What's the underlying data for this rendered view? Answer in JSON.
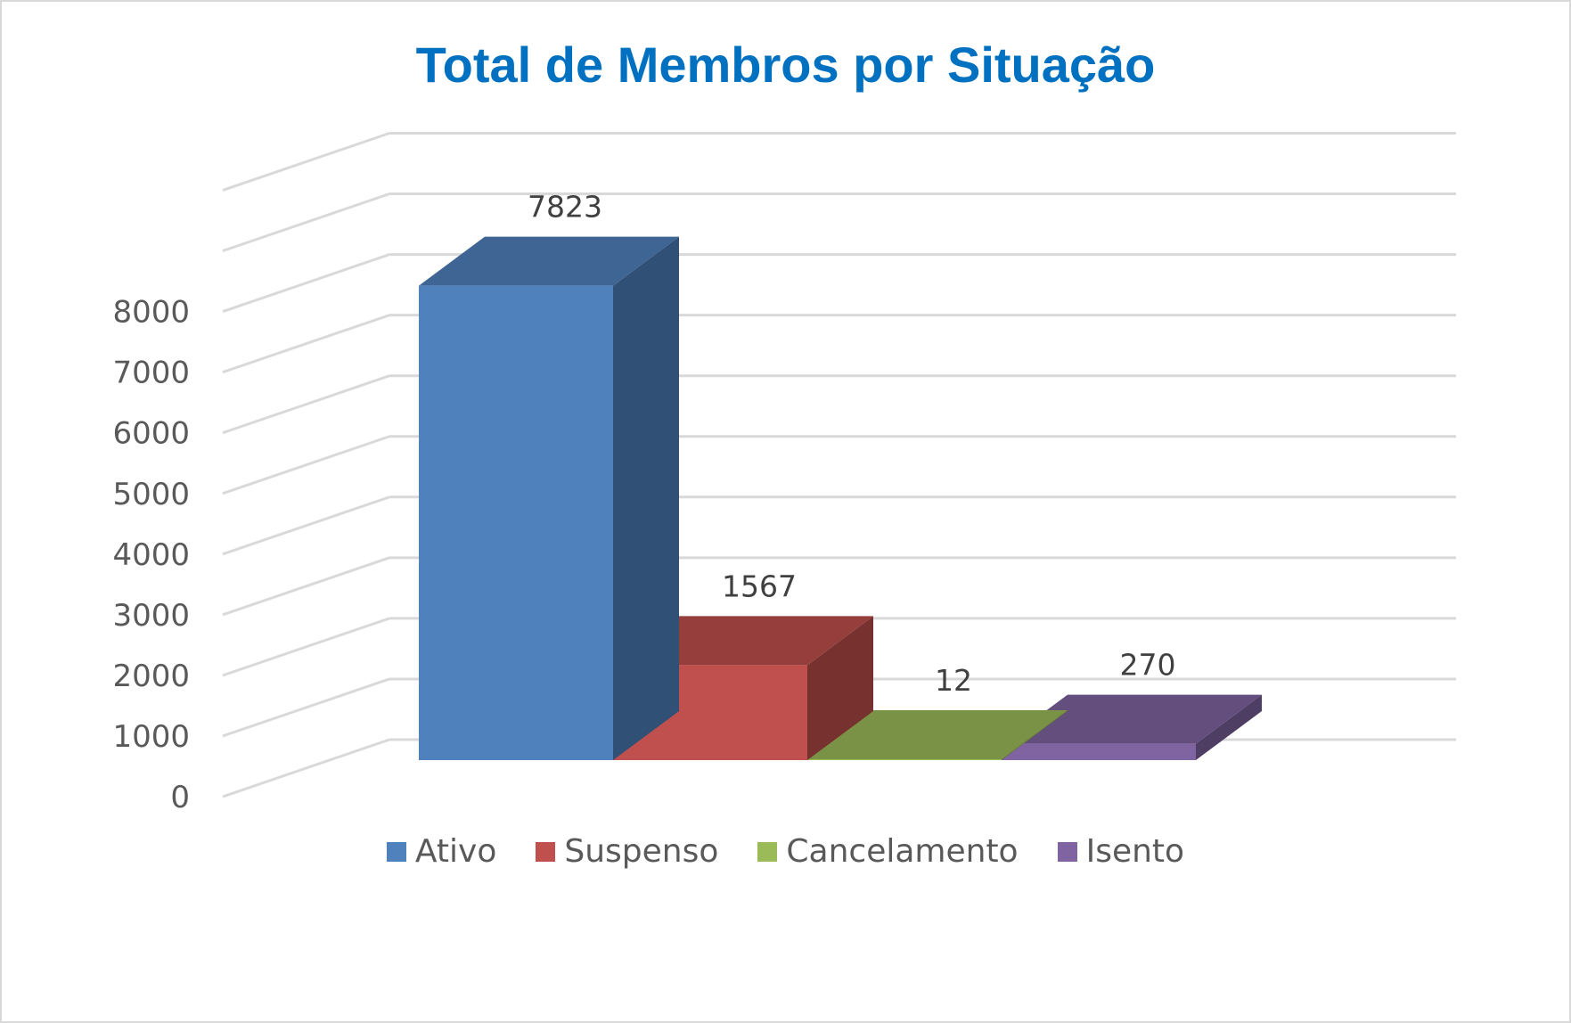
{
  "chart_data": {
    "type": "bar",
    "title": "Total de Membros por Situação",
    "categories": [
      "Ativo",
      "Suspenso",
      "Cancelamento",
      "Isento"
    ],
    "values": [
      7823,
      1567,
      12,
      270
    ],
    "yticks": [
      0,
      1000,
      2000,
      3000,
      4000,
      5000,
      6000,
      7000,
      8000
    ],
    "ylim": [
      0,
      10000
    ],
    "grid": true,
    "legend_position": "bottom",
    "colors": [
      "#4f81bd",
      "#c0504d",
      "#9bbb59",
      "#8064a2"
    ],
    "title_color": "#0070c0"
  }
}
